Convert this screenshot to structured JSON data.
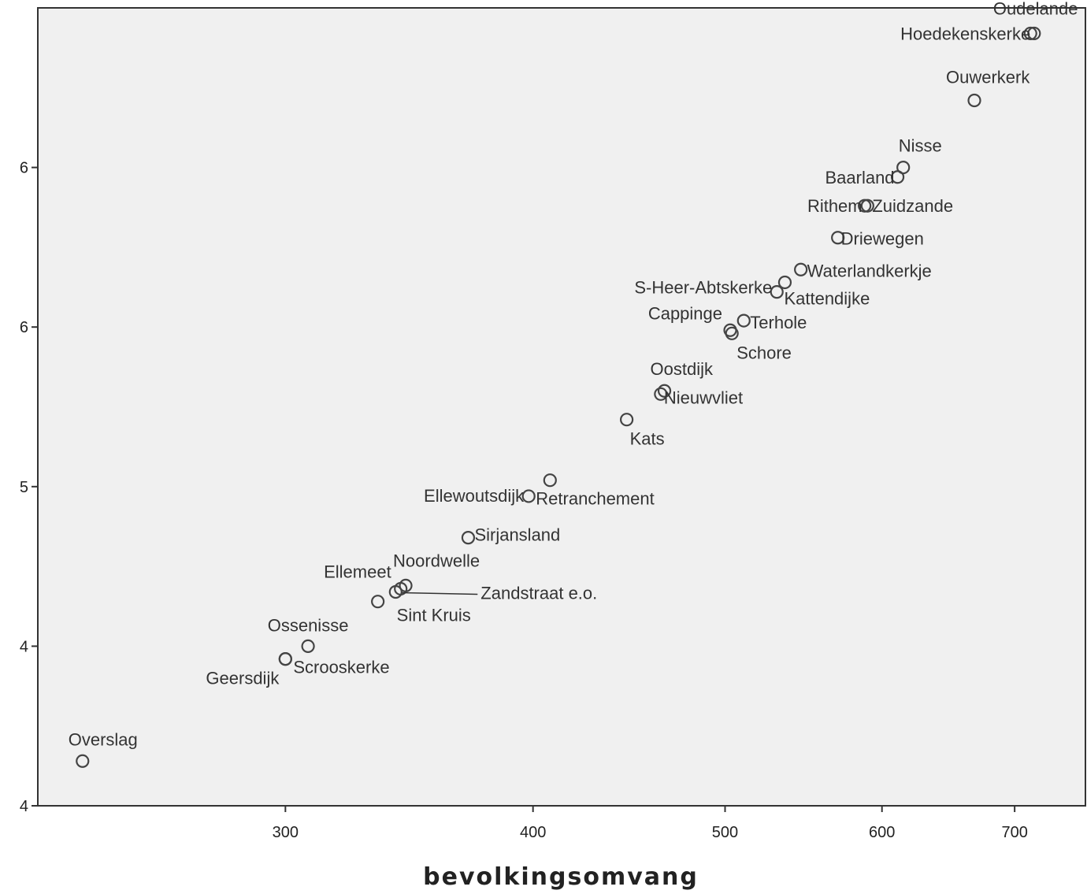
{
  "chart_data": {
    "type": "scatter",
    "title": "",
    "xlabel": "bevolkingsomvang",
    "ylabel": "",
    "x_scale": "log",
    "xlim": [
      225,
      760
    ],
    "ylim": [
      4,
      6.5
    ],
    "x_ticks": [
      300,
      400,
      500,
      600,
      700
    ],
    "x_tick_labels": [
      "300",
      "400",
      "500",
      "600",
      "700"
    ],
    "y_ticks": [
      4,
      4.5,
      5,
      5.5,
      6
    ],
    "y_tick_labels": [
      "4",
      "4",
      "5",
      "6",
      "6"
    ],
    "grid": false,
    "legend": "none",
    "plot_background": "#f0f0f0",
    "marker_color": "#444444",
    "points": [
      {
        "name": "Oudelande",
        "x": 716,
        "y": 6.42
      },
      {
        "name": "Hoedekenskerke",
        "x": 713,
        "y": 6.42
      },
      {
        "name": "Ouwerkerk",
        "x": 668,
        "y": 6.21
      },
      {
        "name": "Nisse",
        "x": 615,
        "y": 6.0
      },
      {
        "name": "Baarland",
        "x": 611,
        "y": 5.97
      },
      {
        "name": "Rithem",
        "x": 588,
        "y": 5.88
      },
      {
        "name": "Zuidzande",
        "x": 590,
        "y": 5.88
      },
      {
        "name": "Driewegen",
        "x": 570,
        "y": 5.78
      },
      {
        "name": "Waterlandkerkje",
        "x": 546,
        "y": 5.68
      },
      {
        "name": "Kattendijke",
        "x": 536,
        "y": 5.64
      },
      {
        "name": "S-Heer-Abtskerke",
        "x": 531,
        "y": 5.61
      },
      {
        "name": "Terhole",
        "x": 511,
        "y": 5.52
      },
      {
        "name": "Cappinge",
        "x": 503,
        "y": 5.49
      },
      {
        "name": "Schore",
        "x": 504,
        "y": 5.48
      },
      {
        "name": "Oostdijk",
        "x": 466,
        "y": 5.3
      },
      {
        "name": "Nieuwvliet",
        "x": 464,
        "y": 5.29
      },
      {
        "name": "Kats",
        "x": 446,
        "y": 5.21
      },
      {
        "name": "Retranchement",
        "x": 408,
        "y": 5.02
      },
      {
        "name": "Ellewoutsdijk",
        "x": 398,
        "y": 4.97
      },
      {
        "name": "Sirjansland",
        "x": 371,
        "y": 4.84
      },
      {
        "name": "Noordwelle",
        "x": 345,
        "y": 4.69
      },
      {
        "name": "Ellemeet",
        "x": 343,
        "y": 4.68
      },
      {
        "name": "Zandstraat e.o.",
        "x": 341,
        "y": 4.67
      },
      {
        "name": "Sint Kruis",
        "x": 334,
        "y": 4.64
      },
      {
        "name": "Ossenisse",
        "x": 308,
        "y": 4.5
      },
      {
        "name": "Scrooskerke",
        "x": 300,
        "y": 4.46
      },
      {
        "name": "Geersdijk",
        "x": 300,
        "y": 4.46
      },
      {
        "name": "Overslag",
        "x": 237,
        "y": 4.14
      }
    ]
  }
}
